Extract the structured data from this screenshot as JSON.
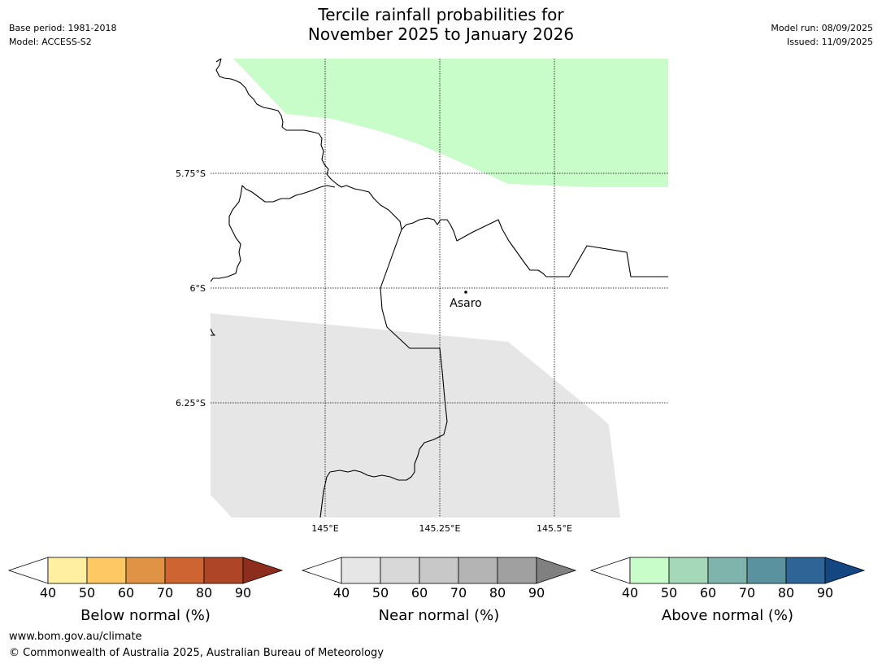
{
  "header": {
    "title_line1": "Tercile rainfall probabilities for",
    "title_line2": "November 2025 to January 2026",
    "base_period": "Base period: 1981-2018",
    "model": "Model: ACCESS-S2",
    "model_run": "Model run: 08/09/2025",
    "issued": "Issued: 11/09/2025"
  },
  "map": {
    "latitude_labels": [
      "5.75°S",
      "6°S",
      "6.25°S"
    ],
    "longitude_labels": [
      "145°E",
      "145.25°E",
      "145.5°E"
    ],
    "place": "Asaro",
    "region_colors": {
      "above_normal_40_50": "#c8fcc8",
      "near_normal_40_50": "#e6e6e6"
    }
  },
  "colorbars": [
    {
      "title": "Below normal (%)",
      "ticks": [
        "40",
        "50",
        "60",
        "70",
        "80",
        "90"
      ],
      "colors": [
        "#fef0a0",
        "#fec864",
        "#e09344",
        "#cd6432",
        "#ad4526",
        "#8c2d1e"
      ]
    },
    {
      "title": "Near normal (%)",
      "ticks": [
        "40",
        "50",
        "60",
        "70",
        "80",
        "90"
      ],
      "colors": [
        "#e6e6e6",
        "#d8d8d8",
        "#c8c8c8",
        "#b4b4b4",
        "#a0a0a0",
        "#808080"
      ]
    },
    {
      "title": "Above normal (%)",
      "ticks": [
        "40",
        "50",
        "60",
        "70",
        "80",
        "90"
      ],
      "colors": [
        "#c8fcc8",
        "#a4d8b8",
        "#7eb4ac",
        "#5a92a0",
        "#2e6496",
        "#144682"
      ]
    }
  ],
  "footer": {
    "url": "www.bom.gov.au/climate",
    "copyright": "© Commonwealth of Australia 2025, Australian Bureau of Meteorology"
  }
}
